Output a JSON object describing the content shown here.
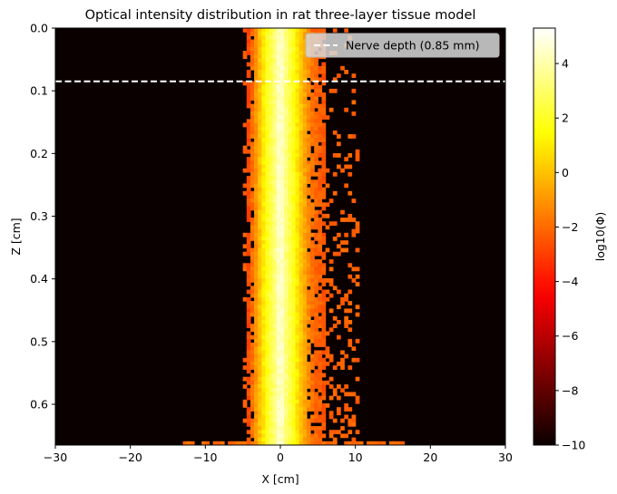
{
  "chart_data": {
    "type": "heatmap",
    "title": "Optical intensity distribution in rat three-layer tissue model",
    "xlabel": "X [cm]",
    "ylabel": "Z [cm]",
    "xlim": [
      -30,
      30
    ],
    "ylim": [
      0.665,
      0.0
    ],
    "y_inverted": true,
    "x_ticks": [
      -30,
      -20,
      -10,
      0,
      10,
      20,
      30
    ],
    "x_tick_labels": [
      "−30",
      "−20",
      "−10",
      "0",
      "10",
      "20",
      "30"
    ],
    "y_ticks": [
      0.0,
      0.1,
      0.2,
      0.3,
      0.4,
      0.5,
      0.6
    ],
    "y_tick_labels": [
      "0.0",
      "0.1",
      "0.2",
      "0.3",
      "0.4",
      "0.5",
      "0.6"
    ],
    "colormap": "hot",
    "colorbar": {
      "label": "log10(Φ)",
      "vmin": -10,
      "vmax": 5.3,
      "ticks": [
        4,
        2,
        0,
        -2,
        -4,
        -6,
        -8,
        -10
      ],
      "tick_labels": [
        "4",
        "2",
        "0",
        "−2",
        "−4",
        "−6",
        "−8",
        "−10"
      ]
    },
    "reference_line": {
      "label": "Nerve depth (0.85 mm)",
      "z": 0.085,
      "style": "dashed",
      "color": "#ffffff"
    },
    "legend_position": "upper-right",
    "intensity_profile_log10_vs_x": {
      "x": [
        -30,
        -6,
        -4.2,
        -3.5,
        -2.5,
        -1.5,
        -0.8,
        0,
        0.8,
        1.5,
        2.5,
        3.5,
        4.5,
        6,
        9,
        30
      ],
      "value": [
        -10,
        -10,
        -2.5,
        -1.5,
        0.5,
        2.2,
        3.2,
        4.8,
        3.2,
        2.2,
        0.5,
        -1.0,
        -2.0,
        -2.5,
        -10,
        -10
      ]
    }
  }
}
